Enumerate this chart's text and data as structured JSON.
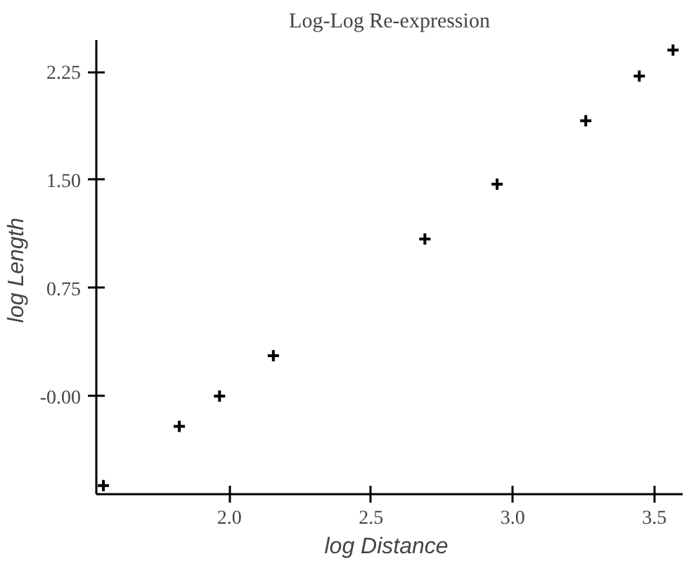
{
  "chart_data": {
    "type": "scatter",
    "title": "Log-Log Re-expression",
    "xlabel": "log  Distance",
    "ylabel": "log  Length",
    "x": [
      1.555,
      1.823,
      1.965,
      2.155,
      2.69,
      2.945,
      3.258,
      3.447,
      3.566
    ],
    "series": [
      {
        "color": "#000000",
        "values": [
          -0.62,
          -0.21,
          0.0,
          0.28,
          1.09,
          1.47,
          1.91,
          2.22,
          2.4
        ]
      }
    ],
    "xlim": [
      1.53,
      3.6
    ],
    "ylim": [
      -0.68,
      2.47
    ],
    "xticks": [
      {
        "value": 2.0,
        "label": "2.0"
      },
      2.5,
      {
        "value": 3.0,
        "label": "3.0"
      },
      3.5
    ],
    "yticks": [
      {
        "value": -0.0,
        "label": "-0.00"
      },
      0.75,
      {
        "value": 1.5,
        "label": "1.50"
      },
      2.25
    ],
    "marker": "cross",
    "grid": false
  }
}
